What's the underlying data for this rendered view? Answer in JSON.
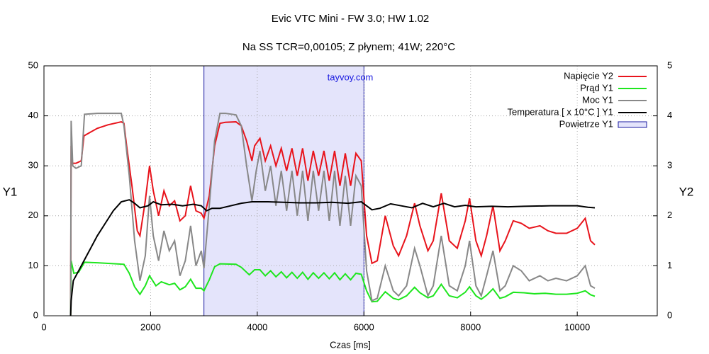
{
  "chart_data": {
    "type": "line",
    "title": "Evic VTC Mini   -   FW 3.0;  HW 1.02",
    "subtitle": "Na SS TCR=0,00105;  Z płynem;  41W;  220°C",
    "x_label": "Czas [ms]",
    "y_label": "Y1",
    "y2_label": "Y2",
    "annotation": "tayvoy.com",
    "xlim": [
      0,
      11500
    ],
    "xticks": [
      0,
      2000,
      4000,
      6000,
      8000,
      10000
    ],
    "ylim": [
      0,
      50
    ],
    "yticks": [
      0,
      10,
      20,
      30,
      40,
      50
    ],
    "y2lim": [
      0,
      5
    ],
    "y2ticks": [
      0,
      1,
      2,
      3,
      4,
      5
    ],
    "grid": true,
    "legend": "top-right",
    "regions": [
      {
        "name": "Powietrze Y1",
        "color": "#e4e4fb",
        "x": [
          3000,
          6000
        ]
      }
    ],
    "series": [
      {
        "name": "Napięcie Y2",
        "color": "#e8141c",
        "axis": "y2",
        "x": [
          500,
          510,
          530,
          600,
          700,
          750,
          1000,
          1200,
          1450,
          1500,
          1550,
          1650,
          1750,
          1800,
          1900,
          1980,
          2050,
          2150,
          2250,
          2350,
          2450,
          2550,
          2650,
          2750,
          2850,
          2950,
          3000,
          3100,
          3200,
          3300,
          3400,
          3600,
          3700,
          3800,
          3900,
          3950,
          4050,
          4150,
          4250,
          4350,
          4450,
          4550,
          4650,
          4750,
          4850,
          4950,
          5050,
          5150,
          5250,
          5350,
          5450,
          5550,
          5650,
          5750,
          5850,
          5950,
          6050,
          6150,
          6250,
          6400,
          6550,
          6650,
          6800,
          6950,
          7050,
          7200,
          7300,
          7450,
          7600,
          7750,
          7900,
          7980,
          8100,
          8200,
          8300,
          8420,
          8550,
          8650,
          8800,
          8950,
          9100,
          9300,
          9450,
          9600,
          9800,
          10000,
          10150,
          10250,
          10330
        ],
        "values": [
          0,
          3.4,
          3.05,
          3.05,
          3.1,
          3.6,
          3.75,
          3.82,
          3.88,
          3.85,
          3.4,
          2.6,
          1.7,
          1.6,
          2.3,
          3.0,
          2.5,
          2.0,
          2.5,
          2.2,
          2.3,
          1.9,
          2.0,
          2.6,
          2.1,
          2.05,
          1.95,
          2.4,
          3.4,
          3.85,
          3.87,
          3.88,
          3.8,
          3.5,
          3.1,
          3.4,
          3.55,
          3.1,
          3.4,
          3.0,
          3.35,
          2.9,
          3.35,
          2.8,
          3.35,
          2.7,
          3.3,
          2.8,
          3.3,
          2.7,
          3.3,
          2.6,
          3.25,
          2.6,
          3.25,
          3.1,
          1.6,
          1.05,
          1.1,
          2.0,
          1.4,
          1.2,
          1.6,
          2.25,
          1.8,
          1.3,
          1.5,
          2.45,
          1.5,
          1.35,
          1.9,
          2.35,
          1.5,
          1.2,
          1.6,
          2.2,
          1.3,
          1.5,
          1.9,
          1.85,
          1.75,
          1.8,
          1.7,
          1.65,
          1.65,
          1.75,
          1.95,
          1.5,
          1.42
        ]
      },
      {
        "name": "Prąd Y1",
        "color": "#1ee61e",
        "axis": "y",
        "x": [
          500,
          510,
          560,
          650,
          760,
          1000,
          1500,
          1600,
          1700,
          1800,
          1900,
          1980,
          2100,
          2200,
          2350,
          2450,
          2550,
          2650,
          2750,
          2850,
          2950,
          3000,
          3100,
          3200,
          3300,
          3600,
          3700,
          3850,
          3950,
          4050,
          4150,
          4250,
          4350,
          4450,
          4550,
          4650,
          4750,
          4850,
          4950,
          5050,
          5150,
          5250,
          5350,
          5450,
          5550,
          5650,
          5750,
          5850,
          5950,
          6050,
          6150,
          6250,
          6400,
          6550,
          6650,
          6800,
          6950,
          7050,
          7200,
          7300,
          7450,
          7600,
          7750,
          7900,
          7980,
          8100,
          8200,
          8300,
          8420,
          8550,
          8650,
          8800,
          9000,
          9200,
          9400,
          9600,
          9800,
          10000,
          10150,
          10250,
          10330
        ],
        "values": [
          0,
          11,
          8.5,
          8.7,
          10.7,
          10.6,
          10.3,
          8.5,
          5.8,
          4.3,
          6,
          8,
          6,
          6.8,
          6.2,
          6.5,
          5.2,
          5.8,
          7.3,
          5.5,
          5.5,
          5,
          7.2,
          9.8,
          10.4,
          10.3,
          9.7,
          8.2,
          9.2,
          9.2,
          8,
          9,
          7.8,
          8.8,
          7.6,
          8.7,
          7.5,
          8.7,
          7.3,
          8.6,
          7.5,
          8.6,
          7.4,
          8.6,
          7.2,
          8.4,
          7.2,
          8.5,
          8.3,
          5,
          2.8,
          2.9,
          4.8,
          3.5,
          3.2,
          4,
          5.7,
          4.6,
          3.6,
          4,
          6.3,
          4,
          3.6,
          4.7,
          5.8,
          4,
          3.3,
          4.1,
          5.4,
          3.5,
          3.8,
          4.7,
          4.6,
          4.4,
          4.5,
          4.3,
          4.3,
          4.5,
          5,
          4.2,
          3.9
        ]
      },
      {
        "name": "Moc Y1",
        "color": "#888888",
        "axis": "y",
        "x": [
          0,
          500,
          510,
          540,
          600,
          700,
          760,
          1000,
          1450,
          1500,
          1600,
          1700,
          1800,
          1900,
          1980,
          2050,
          2150,
          2250,
          2350,
          2450,
          2550,
          2650,
          2750,
          2850,
          2950,
          3000,
          3100,
          3200,
          3300,
          3400,
          3600,
          3700,
          3800,
          3900,
          3980,
          4050,
          4150,
          4250,
          4350,
          4450,
          4550,
          4650,
          4750,
          4850,
          4950,
          5050,
          5150,
          5250,
          5350,
          5450,
          5550,
          5650,
          5750,
          5850,
          5950,
          6050,
          6150,
          6250,
          6400,
          6550,
          6650,
          6800,
          6950,
          7050,
          7200,
          7300,
          7450,
          7600,
          7750,
          7900,
          7980,
          8100,
          8200,
          8300,
          8420,
          8550,
          8650,
          8800,
          8950,
          9100,
          9300,
          9450,
          9600,
          9800,
          10000,
          10150,
          10250,
          10330
        ],
        "values": [
          0,
          0,
          39,
          30,
          29.5,
          30,
          40.3,
          40.5,
          40.5,
          38,
          28,
          15,
          7,
          12,
          24,
          16,
          11,
          17,
          13,
          15,
          8,
          11,
          18,
          10,
          13,
          9.5,
          22,
          35,
          40.5,
          40.5,
          40.2,
          38,
          30,
          23,
          29,
          33,
          25,
          30,
          22,
          29,
          21,
          29,
          20,
          29,
          19,
          29,
          21,
          29,
          19,
          29,
          18,
          28,
          18,
          28,
          26,
          9,
          3,
          3.5,
          10,
          5,
          4,
          6,
          13.5,
          10,
          4,
          6,
          16,
          6,
          5,
          10,
          15,
          6,
          4,
          8,
          13,
          5,
          6,
          10,
          9,
          7,
          8,
          7,
          7.5,
          7,
          8,
          10,
          6,
          5.5
        ]
      },
      {
        "name": "Temperatura [ x 10°C ]  Y1",
        "color": "#000000",
        "axis": "y",
        "x": [
          500,
          510,
          550,
          650,
          800,
          1000,
          1150,
          1300,
          1450,
          1600,
          1700,
          1800,
          1950,
          2050,
          2200,
          2400,
          2600,
          2800,
          2950,
          3050,
          3150,
          3300,
          3500,
          3700,
          3900,
          4200,
          4500,
          4800,
          5100,
          5400,
          5700,
          5950,
          6050,
          6150,
          6300,
          6500,
          6700,
          6900,
          7100,
          7300,
          7500,
          7700,
          7900,
          8100,
          8400,
          8700,
          9000,
          9500,
          10000,
          10200,
          10330
        ],
        "values": [
          0,
          3,
          7,
          9,
          12,
          16,
          18.5,
          21,
          22.8,
          23.2,
          22.5,
          21.6,
          22,
          22.8,
          22.2,
          22.3,
          22,
          22.3,
          22,
          21,
          21.5,
          21.5,
          22,
          22.5,
          22.8,
          22.8,
          22.7,
          22.6,
          22.6,
          22.7,
          22.5,
          22.8,
          22,
          21.2,
          21.5,
          22.4,
          22,
          21.6,
          22.5,
          21.8,
          22.5,
          21.8,
          22.1,
          21.8,
          21.9,
          21.8,
          21.9,
          22,
          22,
          21.7,
          21.6
        ]
      }
    ]
  }
}
